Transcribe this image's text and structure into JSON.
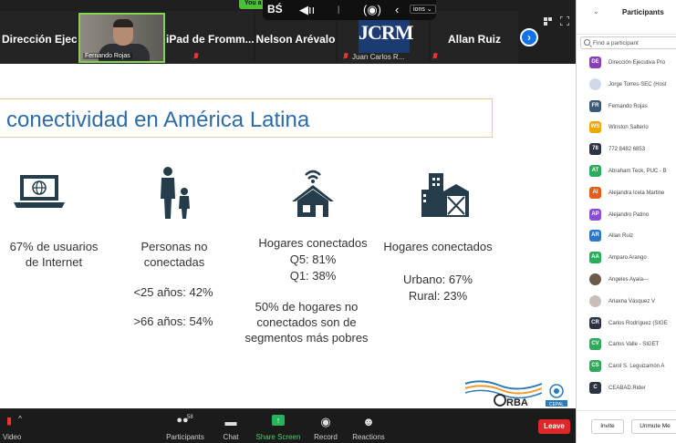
{
  "top_strip": {
    "tiles": [
      {
        "name": "Dirección Ejecut..."
      },
      {
        "name": "iPad de Fromm..."
      },
      {
        "name": "Nelson Arévalo"
      },
      {
        "name": "Allan Ruiz"
      }
    ],
    "speaker_label": "Fernando Rojas",
    "jcrm_logo_text": "JCRM",
    "jcrm_footer": "Juan Carlos R...",
    "floating_badge": "You a",
    "floating_options": "ions ⌄"
  },
  "slide": {
    "title": "conectividad en América Latina",
    "internet_users": "67% de usuarios de Internet",
    "persons_label": "Personas no conectadas",
    "persons_under25": "<25 años: 42%",
    "persons_over66": ">66 años: 54%",
    "homes_connected": "Hogares conectados",
    "homes_q5": "Q5: 81%",
    "homes_q1": "Q1: 38%",
    "homes_poor": "50% de hogares no conectados son de segmentos más pobres",
    "homes_area_label": "Hogares conectados",
    "homes_urban": "Urbano: 67%",
    "homes_rural": "Rural: 23%",
    "orba_text": "RBA",
    "un_text": "CEPAL"
  },
  "toolbar": {
    "video": "Video",
    "participants": "Participants",
    "participants_count": "58",
    "chat": "Chat",
    "share_screen": "Share Screen",
    "record": "Record",
    "reactions": "Reactions",
    "leave": "Leave"
  },
  "panel": {
    "title": "Participants",
    "search_placeholder": "Find a participant",
    "participants": [
      {
        "initials": "DE",
        "name": "Dirección Ejecutiva Pro",
        "color": "#8a3fb5"
      },
      {
        "initials": "",
        "name": "Jorge Torres-SEC (Host",
        "color": "#cfd8e6"
      },
      {
        "initials": "FR",
        "name": "Fernando Rojas",
        "color": "#3a5a78"
      },
      {
        "initials": "WS",
        "name": "Winston Salterio",
        "color": "#f0a500"
      },
      {
        "initials": "78",
        "name": "772 8482 6853",
        "color": "#2b3440"
      },
      {
        "initials": "AT",
        "name": "Abraham Teck, PUC - B",
        "color": "#2faa5a"
      },
      {
        "initials": "AI",
        "name": "Alejandra Icela Martine",
        "color": "#e0601a"
      },
      {
        "initials": "AP",
        "name": "Alejandro Patino",
        "color": "#8a4fd0"
      },
      {
        "initials": "AR",
        "name": "Allan Ruiz",
        "color": "#2a78c5"
      },
      {
        "initials": "AA",
        "name": "Amparo Arango",
        "color": "#2faa5a"
      },
      {
        "initials": "",
        "name": "Angeles Ayala---",
        "color": "#6a5a4a"
      },
      {
        "initials": "",
        "name": "Ariaxna Vásquez V",
        "color": "#c8c0b8"
      },
      {
        "initials": "CR",
        "name": "Carlos Rodríguez (SIGE",
        "color": "#2b3440"
      },
      {
        "initials": "CV",
        "name": "Carlos Valle - SIGET",
        "color": "#2faa5a"
      },
      {
        "initials": "CS",
        "name": "Carol S. Leguizamón A",
        "color": "#2faa5a"
      },
      {
        "initials": "C",
        "name": "CEABAD.Rider",
        "color": "#2b3440"
      }
    ],
    "invite": "Invite",
    "unmute_me": "Unmute Me"
  }
}
